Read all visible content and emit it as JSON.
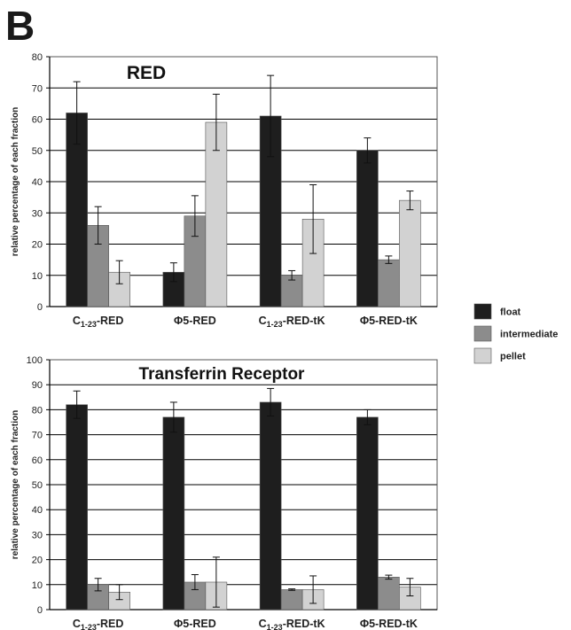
{
  "panel_label": "B",
  "colors": {
    "float": "#1e1e1e",
    "intermediate": "#8c8c8c",
    "pellet": "#d2d2d2"
  },
  "legend": {
    "items": [
      "float",
      "intermediate",
      "pellet"
    ]
  },
  "chart_data": [
    {
      "type": "bar",
      "title": "RED",
      "ylabel": "relative percentage of each fraction",
      "ylim": [
        0,
        80
      ],
      "yticks": [
        0,
        10,
        20,
        30,
        40,
        50,
        60,
        70,
        80
      ],
      "grid": true,
      "categories": [
        "C1-23-RED",
        "Φ5-RED",
        "C1-23-RED-tK",
        "Φ5-RED-tK"
      ],
      "series": [
        {
          "name": "float",
          "values": [
            62,
            11,
            61,
            50
          ],
          "errors": [
            10,
            3,
            13,
            4
          ]
        },
        {
          "name": "intermediate",
          "values": [
            26,
            29,
            10,
            15
          ],
          "errors": [
            6,
            6.5,
            1.5,
            1.2
          ]
        },
        {
          "name": "pellet",
          "values": [
            11,
            59,
            28,
            34
          ],
          "errors": [
            3.7,
            9,
            11,
            3
          ]
        }
      ]
    },
    {
      "type": "bar",
      "title": "Transferrin Receptor",
      "ylabel": "relative percentage of each fraction",
      "ylim": [
        0,
        100
      ],
      "yticks": [
        0,
        10,
        20,
        30,
        40,
        50,
        60,
        70,
        80,
        90,
        100
      ],
      "grid": true,
      "categories": [
        "C1-23-RED",
        "Φ5-RED",
        "C1-23-RED-tK",
        "Φ5-RED-tK"
      ],
      "series": [
        {
          "name": "float",
          "values": [
            82,
            77,
            83,
            77
          ],
          "errors": [
            5.5,
            6,
            5.5,
            3
          ]
        },
        {
          "name": "intermediate",
          "values": [
            10,
            11,
            8,
            13
          ],
          "errors": [
            2.5,
            3,
            0.3,
            0.8
          ]
        },
        {
          "name": "pellet",
          "values": [
            7,
            11,
            8,
            9
          ],
          "errors": [
            3,
            10,
            5.5,
            3.5
          ]
        }
      ]
    }
  ]
}
